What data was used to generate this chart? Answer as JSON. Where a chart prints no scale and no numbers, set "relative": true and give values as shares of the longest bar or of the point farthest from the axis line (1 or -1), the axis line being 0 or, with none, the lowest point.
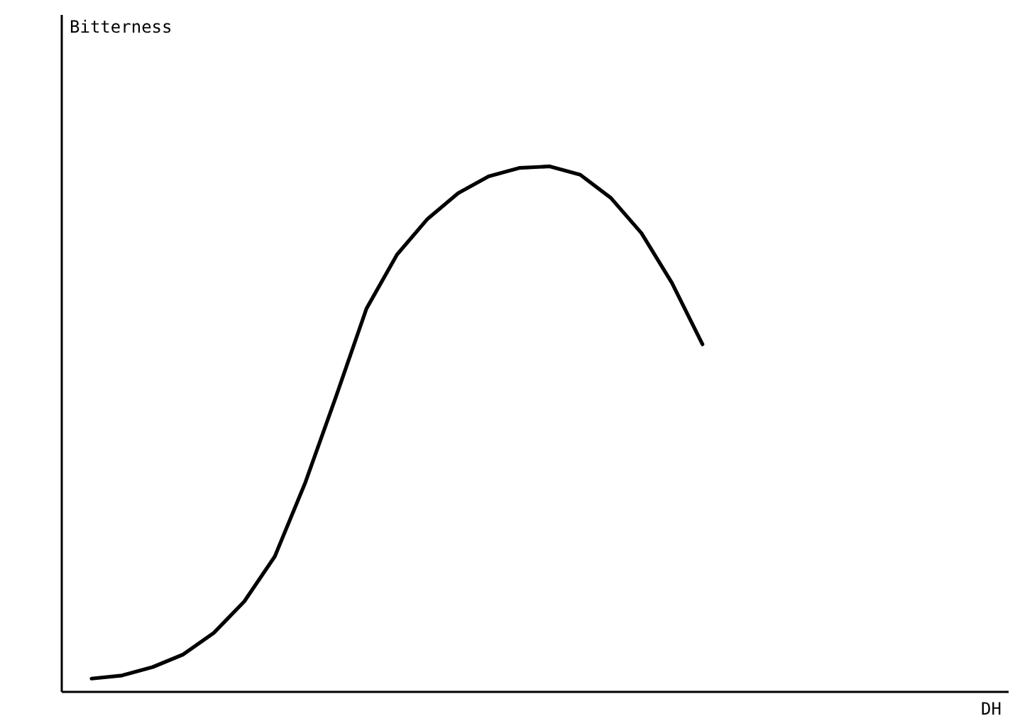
{
  "chart_data": {
    "type": "line",
    "relative": true,
    "xlabel": "DH",
    "annotations": [
      "Bitterness"
    ],
    "grid": false,
    "marker": "none",
    "line_style": "solid",
    "categories": [
      null,
      null,
      null,
      null,
      null,
      null,
      null,
      null,
      null,
      null,
      null,
      null,
      null,
      null,
      null,
      null,
      null,
      null,
      null,
      null,
      null,
      null,
      null,
      null,
      null,
      null,
      null,
      null,
      null,
      null
    ],
    "series": [
      {
        "color": "#000000",
        "values": [
          0.024,
          0.03,
          0.046,
          0.07,
          0.111,
          0.171,
          0.257,
          0.398,
          0.561,
          0.729,
          0.832,
          0.9,
          0.949,
          0.981,
          0.997,
          1,
          0.984,
          0.94,
          0.873,
          0.778,
          0.661,
          null,
          null,
          null,
          null,
          null,
          null,
          null,
          null,
          null
        ]
      }
    ]
  }
}
